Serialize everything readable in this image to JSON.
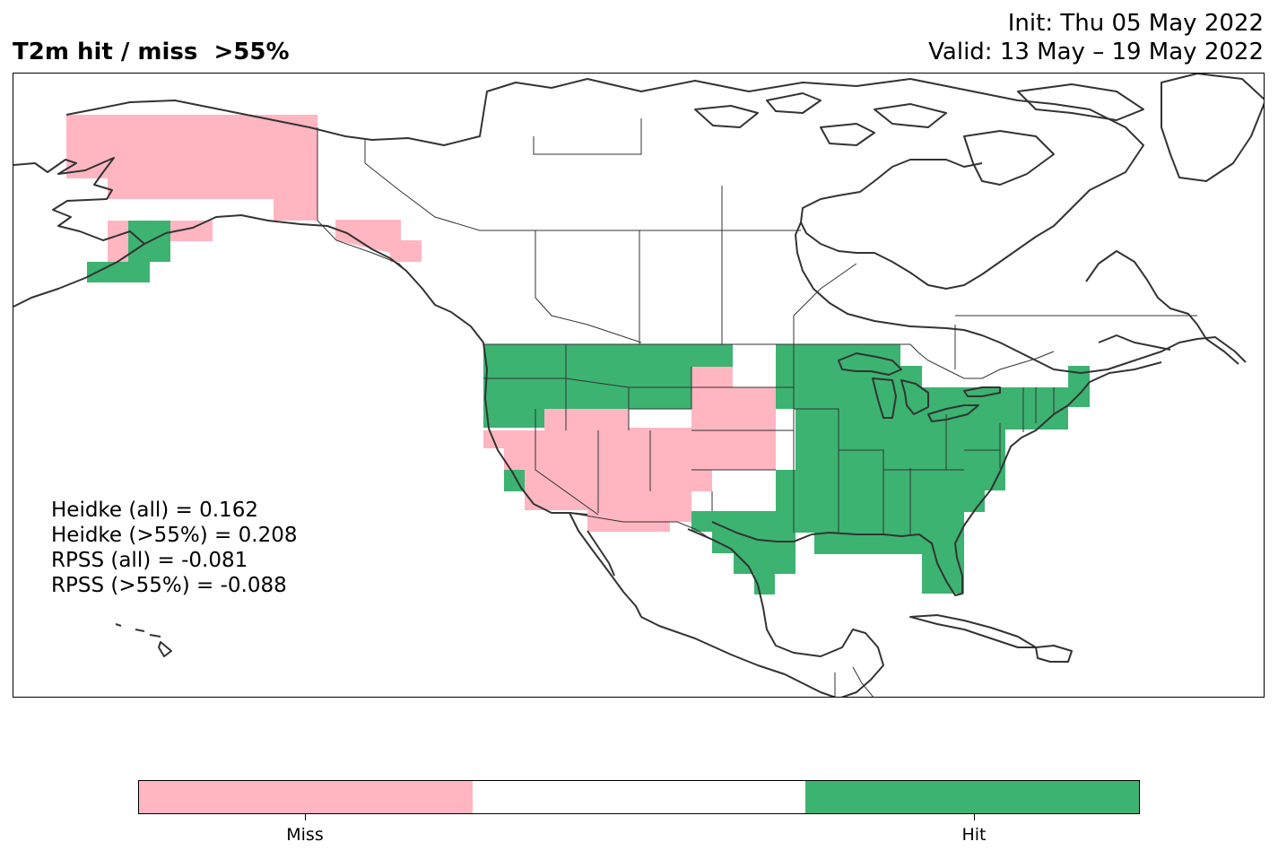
{
  "header": {
    "title": "T2m hit / miss  >55%",
    "init": "Init: Thu 05 May 2022",
    "valid": "Valid: 13 May – 19 May 2022"
  },
  "stats": {
    "heidke_all": "Heidke (all) = 0.162",
    "heidke_55": "Heidke (>55%) = 0.208",
    "rpss_all": "RPSS (all) = -0.081",
    "rpss_55": "RPSS (>55%) = -0.088"
  },
  "legend": {
    "miss_label": "Miss",
    "hit_label": "Hit"
  },
  "colors": {
    "miss": "#ffb6c1",
    "neutral": "#ffffff",
    "hit": "#3cb371",
    "coastline": "#333333"
  },
  "map": {
    "region": "North America",
    "projection": "plate-carree",
    "hit_regions": [
      "Pacific Northwest",
      "Northern Rockies",
      "Upper Midwest",
      "Great Lakes",
      "Northeast",
      "Southeast",
      "Texas Gulf Coast",
      "Florida",
      "South-central Alaska"
    ],
    "miss_regions": [
      "Western Alaska",
      "Alaska Panhandle",
      "California",
      "Great Basin",
      "Southwest",
      "Central Plains"
    ]
  }
}
